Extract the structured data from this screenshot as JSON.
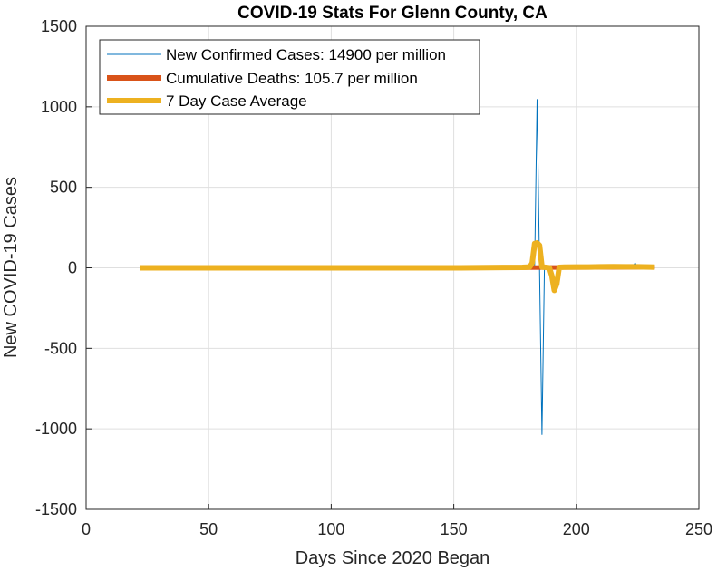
{
  "chart_data": {
    "type": "line",
    "title": "COVID-19 Stats For Glenn County, CA",
    "xlabel": "Days Since 2020 Began",
    "ylabel": "New COVID-19 Cases",
    "xlim": [
      0,
      250
    ],
    "ylim": [
      -1500,
      1500
    ],
    "xticks": [
      0,
      50,
      100,
      150,
      200,
      250
    ],
    "yticks": [
      -1500,
      -1000,
      -500,
      0,
      500,
      1000,
      1500
    ],
    "grid": true,
    "legend_position": "top-left",
    "series": [
      {
        "name": "New Confirmed Cases: 14900 per million",
        "color": "#0072BD",
        "x": [
          22,
          60,
          100,
          150,
          170,
          175,
          180,
          182,
          183,
          184,
          185,
          186,
          187,
          190,
          195,
          200,
          205,
          210,
          215,
          220,
          223,
          224,
          225,
          228,
          232
        ],
        "y": [
          0,
          0,
          0,
          0,
          0,
          2,
          3,
          5,
          10,
          1045,
          0,
          -1035,
          0,
          3,
          5,
          4,
          6,
          5,
          8,
          6,
          10,
          30,
          5,
          5,
          2
        ]
      },
      {
        "name": "Cumulative Deaths: 105.7 per million",
        "color": "#D95319",
        "x": [
          22,
          100,
          170,
          180,
          190,
          200,
          210,
          220,
          232
        ],
        "y": [
          0,
          0,
          0,
          1,
          2,
          2,
          3,
          3,
          4
        ]
      },
      {
        "name": "7 Day Case Average",
        "color": "#EDB120",
        "x": [
          22,
          60,
          100,
          150,
          170,
          178,
          181,
          182,
          183,
          184,
          185,
          186,
          188,
          189,
          190,
          191,
          192,
          193,
          195,
          200,
          205,
          210,
          215,
          220,
          225,
          230,
          232
        ],
        "y": [
          0,
          0,
          0,
          0,
          2,
          3,
          5,
          30,
          150,
          155,
          140,
          5,
          2,
          0,
          -50,
          -140,
          -100,
          3,
          4,
          5,
          5,
          6,
          7,
          6,
          6,
          5,
          4
        ]
      }
    ]
  }
}
